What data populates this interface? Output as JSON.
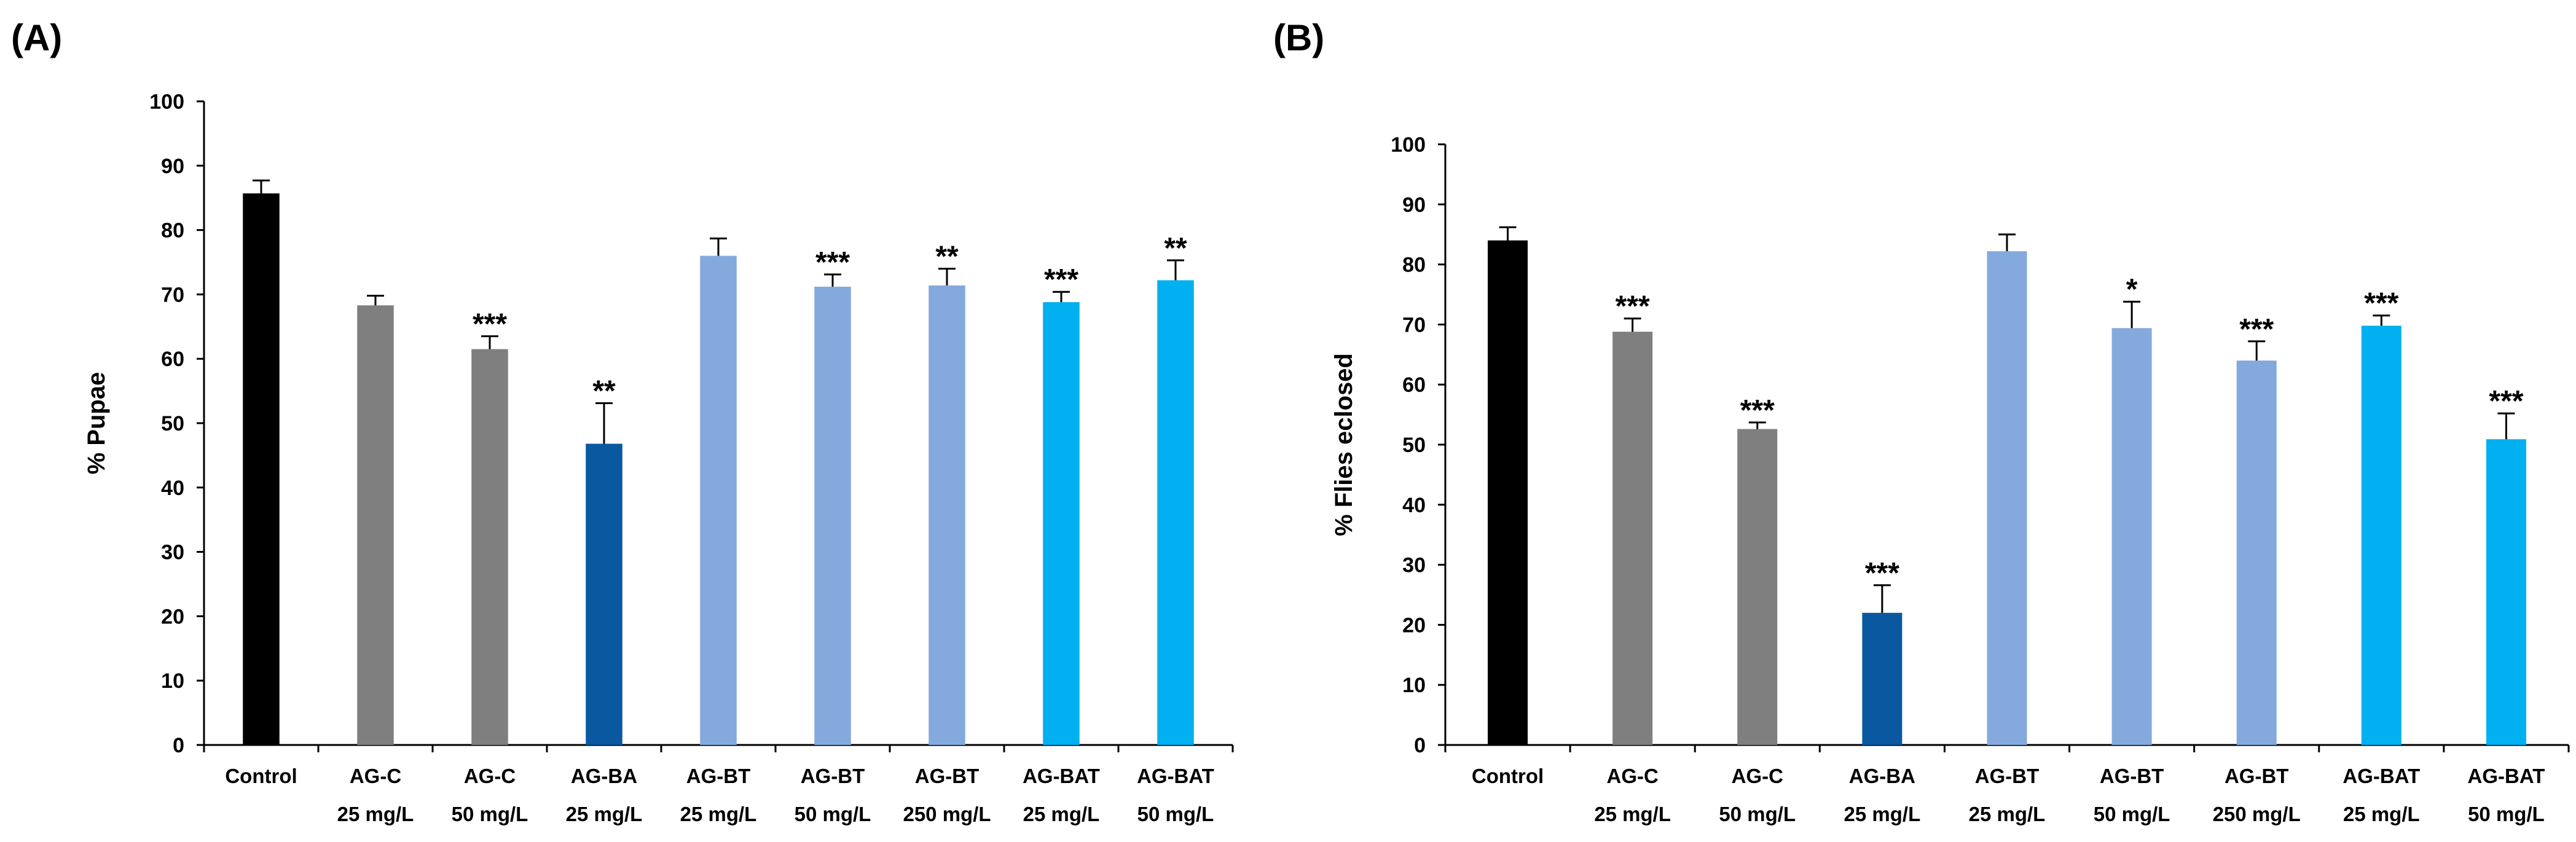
{
  "chart_data": [
    {
      "type": "bar",
      "panel": "(A)",
      "ylabel": "% Pupae",
      "ylim": [
        0,
        100
      ],
      "yticks": [
        "0",
        "10",
        "20",
        "30",
        "40",
        "50",
        "60",
        "70",
        "80",
        "90",
        "100"
      ],
      "categories": [
        {
          "name": "Control",
          "dose": ""
        },
        {
          "name": "AG-C",
          "dose": "25 mg/L"
        },
        {
          "name": "AG-C",
          "dose": "50 mg/L"
        },
        {
          "name": "AG-BA",
          "dose": "25 mg/L"
        },
        {
          "name": "AG-BT",
          "dose": "25 mg/L"
        },
        {
          "name": "AG-BT",
          "dose": "50 mg/L"
        },
        {
          "name": "AG-BT",
          "dose": "250 mg/L"
        },
        {
          "name": "AG-BAT",
          "dose": "25 mg/L"
        },
        {
          "name": "AG-BAT",
          "dose": "50 mg/L"
        }
      ],
      "values": [
        85.7,
        68.3,
        61.5,
        46.8,
        76.0,
        71.2,
        71.4,
        68.8,
        72.2
      ],
      "errors": [
        2.0,
        1.5,
        2.0,
        6.3,
        2.7,
        1.9,
        2.6,
        1.6,
        3.1
      ],
      "significance": [
        "",
        "",
        "***",
        "**",
        "",
        "***",
        "**",
        "***",
        "**"
      ],
      "colors": [
        "#000000",
        "#7f7f7f",
        "#7f7f7f",
        "#0a58a0",
        "#84aadd",
        "#84aadd",
        "#84aadd",
        "#00b0f0",
        "#00b0f0"
      ]
    },
    {
      "type": "bar",
      "panel": "(B)",
      "ylabel": "% Flies eclosed",
      "ylim": [
        0,
        100
      ],
      "yticks": [
        "0",
        "10",
        "20",
        "30",
        "40",
        "50",
        "60",
        "70",
        "80",
        "90",
        "100"
      ],
      "categories": [
        {
          "name": "Control",
          "dose": ""
        },
        {
          "name": "AG-C",
          "dose": "25 mg/L"
        },
        {
          "name": "AG-C",
          "dose": "50 mg/L"
        },
        {
          "name": "AG-BA",
          "dose": "25 mg/L"
        },
        {
          "name": "AG-BT",
          "dose": "25 mg/L"
        },
        {
          "name": "AG-BT",
          "dose": "50 mg/L"
        },
        {
          "name": "AG-BT",
          "dose": "250 mg/L"
        },
        {
          "name": "AG-BAT",
          "dose": "25 mg/L"
        },
        {
          "name": "AG-BAT",
          "dose": "50 mg/L"
        }
      ],
      "values": [
        84.0,
        68.8,
        52.6,
        22.0,
        82.2,
        69.4,
        64.0,
        69.8,
        50.9
      ],
      "errors": [
        2.2,
        2.2,
        1.1,
        4.6,
        2.8,
        4.4,
        3.2,
        1.7,
        4.3
      ],
      "significance": [
        "",
        "***",
        "***",
        "***",
        "",
        "*",
        "***",
        "***",
        "***"
      ],
      "colors": [
        "#000000",
        "#7f7f7f",
        "#7f7f7f",
        "#0a58a0",
        "#84aadd",
        "#84aadd",
        "#84aadd",
        "#00b0f0",
        "#00b0f0"
      ]
    }
  ]
}
